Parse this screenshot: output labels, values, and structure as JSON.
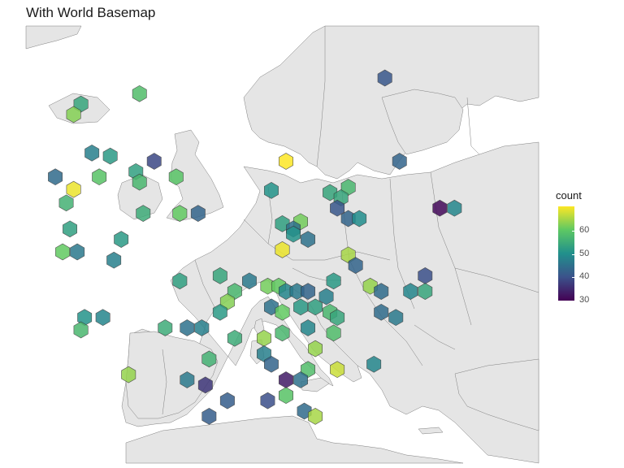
{
  "title": "With World Basemap",
  "legend": {
    "title": "count",
    "ticks": [
      "60",
      "50",
      "40",
      "30"
    ]
  },
  "colors": {
    "land": "#e5e5e5",
    "border": "#7f7f7f",
    "water": "#ffffff",
    "scale": [
      "#440154",
      "#3b528b",
      "#21908c",
      "#5dc863",
      "#fde725"
    ]
  },
  "chart_data": {
    "type": "hexbin-map",
    "basemap": "world",
    "fill": "count",
    "scale": {
      "name": "viridis",
      "min": 30,
      "max": 67
    },
    "bins": [
      {
        "lon": -22.5,
        "lat": 64.5,
        "count": 52
      },
      {
        "lon": -23.5,
        "lat": 63.5,
        "count": 60
      },
      {
        "lon": -14.5,
        "lat": 65.5,
        "count": 56
      },
      {
        "lon": 19.0,
        "lat": 67.0,
        "count": 40
      },
      {
        "lon": -21.0,
        "lat": 59.8,
        "count": 46
      },
      {
        "lon": -18.5,
        "lat": 59.5,
        "count": 50
      },
      {
        "lon": -12.5,
        "lat": 59.0,
        "count": 38
      },
      {
        "lon": 5.5,
        "lat": 59.0,
        "count": 67
      },
      {
        "lon": 21.0,
        "lat": 59.0,
        "count": 42
      },
      {
        "lon": -26.0,
        "lat": 57.5,
        "count": 43
      },
      {
        "lon": -20.0,
        "lat": 57.5,
        "count": 57
      },
      {
        "lon": -15.0,
        "lat": 58.0,
        "count": 51
      },
      {
        "lon": -14.5,
        "lat": 57.0,
        "count": 55
      },
      {
        "lon": -9.5,
        "lat": 57.5,
        "count": 57
      },
      {
        "lon": -23.5,
        "lat": 56.3,
        "count": 66
      },
      {
        "lon": -24.5,
        "lat": 55.0,
        "count": 54
      },
      {
        "lon": 3.5,
        "lat": 56.2,
        "count": 49
      },
      {
        "lon": 11.5,
        "lat": 56.0,
        "count": 52
      },
      {
        "lon": 14.0,
        "lat": 56.5,
        "count": 55
      },
      {
        "lon": 13.0,
        "lat": 55.5,
        "count": 52
      },
      {
        "lon": 26.5,
        "lat": 54.5,
        "count": 31
      },
      {
        "lon": 28.5,
        "lat": 54.5,
        "count": 47
      },
      {
        "lon": -14.0,
        "lat": 54.0,
        "count": 53
      },
      {
        "lon": -9.0,
        "lat": 54.0,
        "count": 58
      },
      {
        "lon": -6.5,
        "lat": 54.0,
        "count": 42
      },
      {
        "lon": 5.0,
        "lat": 53.0,
        "count": 51
      },
      {
        "lon": 7.5,
        "lat": 53.2,
        "count": 59
      },
      {
        "lon": 6.5,
        "lat": 52.5,
        "count": 44
      },
      {
        "lon": 14.0,
        "lat": 53.5,
        "count": 42
      },
      {
        "lon": 15.5,
        "lat": 53.5,
        "count": 48
      },
      {
        "lon": 12.5,
        "lat": 54.5,
        "count": 40
      },
      {
        "lon": -24.0,
        "lat": 52.5,
        "count": 51
      },
      {
        "lon": -17.0,
        "lat": 51.5,
        "count": 50
      },
      {
        "lon": 6.5,
        "lat": 52.0,
        "count": 49
      },
      {
        "lon": 8.5,
        "lat": 51.5,
        "count": 44
      },
      {
        "lon": -25.0,
        "lat": 50.3,
        "count": 58
      },
      {
        "lon": -23.0,
        "lat": 50.3,
        "count": 45
      },
      {
        "lon": -18.0,
        "lat": 49.5,
        "count": 46
      },
      {
        "lon": 5.0,
        "lat": 50.5,
        "count": 66
      },
      {
        "lon": 14.0,
        "lat": 50.0,
        "count": 62
      },
      {
        "lon": 15.0,
        "lat": 49.0,
        "count": 42
      },
      {
        "lon": -9.0,
        "lat": 47.5,
        "count": 51
      },
      {
        "lon": -3.5,
        "lat": 48.0,
        "count": 52
      },
      {
        "lon": 0.5,
        "lat": 47.5,
        "count": 45
      },
      {
        "lon": 3.0,
        "lat": 47.0,
        "count": 59
      },
      {
        "lon": 4.5,
        "lat": 47.0,
        "count": 58
      },
      {
        "lon": 5.5,
        "lat": 46.5,
        "count": 47
      },
      {
        "lon": 7.0,
        "lat": 46.5,
        "count": 45
      },
      {
        "lon": 8.5,
        "lat": 46.5,
        "count": 42
      },
      {
        "lon": 11.0,
        "lat": 46.0,
        "count": 46
      },
      {
        "lon": 12.0,
        "lat": 47.5,
        "count": 50
      },
      {
        "lon": 17.0,
        "lat": 47.0,
        "count": 61
      },
      {
        "lon": 18.5,
        "lat": 46.5,
        "count": 43
      },
      {
        "lon": 22.5,
        "lat": 46.5,
        "count": 47
      },
      {
        "lon": 24.5,
        "lat": 48.0,
        "count": 39
      },
      {
        "lon": 24.5,
        "lat": 46.5,
        "count": 52
      },
      {
        "lon": -1.5,
        "lat": 46.5,
        "count": 55
      },
      {
        "lon": -2.5,
        "lat": 45.5,
        "count": 60
      },
      {
        "lon": -3.5,
        "lat": 44.5,
        "count": 50
      },
      {
        "lon": 3.5,
        "lat": 45.0,
        "count": 44
      },
      {
        "lon": 5.0,
        "lat": 44.5,
        "count": 58
      },
      {
        "lon": 7.5,
        "lat": 45.0,
        "count": 50
      },
      {
        "lon": 9.5,
        "lat": 45.0,
        "count": 51
      },
      {
        "lon": 11.5,
        "lat": 44.5,
        "count": 55
      },
      {
        "lon": 12.5,
        "lat": 44.0,
        "count": 52
      },
      {
        "lon": 18.5,
        "lat": 44.5,
        "count": 43
      },
      {
        "lon": 20.5,
        "lat": 44.0,
        "count": 45
      },
      {
        "lon": -22.0,
        "lat": 44.0,
        "count": 49
      },
      {
        "lon": -19.5,
        "lat": 44.0,
        "count": 47
      },
      {
        "lon": -22.5,
        "lat": 42.8,
        "count": 55
      },
      {
        "lon": -11.0,
        "lat": 43.0,
        "count": 53
      },
      {
        "lon": -8.0,
        "lat": 43.0,
        "count": 44
      },
      {
        "lon": -6.0,
        "lat": 43.0,
        "count": 46
      },
      {
        "lon": -1.5,
        "lat": 42.0,
        "count": 53
      },
      {
        "lon": 2.5,
        "lat": 42.0,
        "count": 61
      },
      {
        "lon": 5.0,
        "lat": 42.5,
        "count": 55
      },
      {
        "lon": 8.5,
        "lat": 43.0,
        "count": 47
      },
      {
        "lon": 12.0,
        "lat": 42.5,
        "count": 56
      },
      {
        "lon": 9.5,
        "lat": 41.0,
        "count": 61
      },
      {
        "lon": 2.5,
        "lat": 40.5,
        "count": 46
      },
      {
        "lon": 3.5,
        "lat": 39.5,
        "count": 42
      },
      {
        "lon": 8.5,
        "lat": 39.0,
        "count": 56
      },
      {
        "lon": 12.5,
        "lat": 39.0,
        "count": 64
      },
      {
        "lon": 5.5,
        "lat": 38.0,
        "count": 33
      },
      {
        "lon": 7.5,
        "lat": 38.0,
        "count": 44
      },
      {
        "lon": 17.5,
        "lat": 39.5,
        "count": 47
      },
      {
        "lon": -16.0,
        "lat": 38.5,
        "count": 61
      },
      {
        "lon": -8.0,
        "lat": 38.0,
        "count": 45
      },
      {
        "lon": -5.0,
        "lat": 40.0,
        "count": 54
      },
      {
        "lon": -5.5,
        "lat": 37.5,
        "count": 36
      },
      {
        "lon": -5.0,
        "lat": 34.5,
        "count": 41
      },
      {
        "lon": -2.5,
        "lat": 36.0,
        "count": 41
      },
      {
        "lon": 3.0,
        "lat": 36.0,
        "count": 39
      },
      {
        "lon": 5.5,
        "lat": 36.5,
        "count": 57
      },
      {
        "lon": 8.0,
        "lat": 35.0,
        "count": 43
      },
      {
        "lon": 9.5,
        "lat": 34.5,
        "count": 62
      }
    ]
  }
}
